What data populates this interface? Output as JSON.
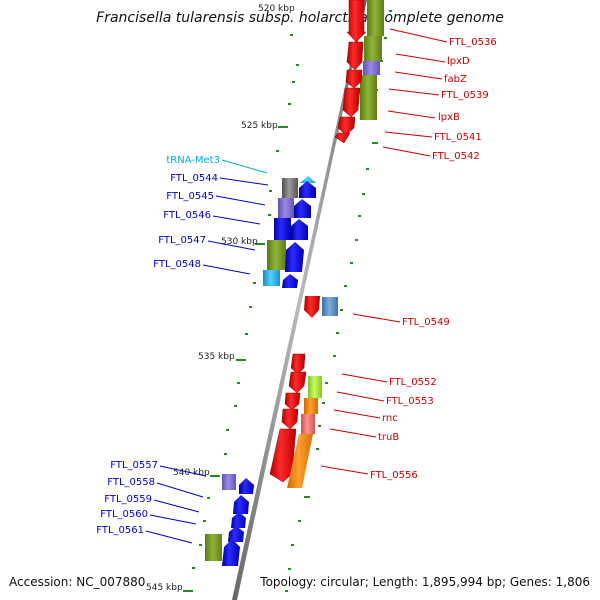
{
  "title": "Francisella tularensis subsp. holarctica, complete genome",
  "footer": {
    "accession_label": "Accession:",
    "accession": "NC_007880",
    "topology_label": "Topology:",
    "topology": "circular;",
    "length_label": "Length:",
    "length": "1,895,994 bp;",
    "genes_label": "Genes:",
    "genes": "1,806"
  },
  "colors": {
    "forward_strand_genes": "#ff0000",
    "reverse_strand_genes": "#0000ee",
    "trna": "#33ccff",
    "backbone": "#888888",
    "ticks": "#228b22"
  },
  "scale_labels": [
    "520 kbp",
    "525 kbp",
    "530 kbp",
    "535 kbp",
    "540 kbp",
    "545 kbp"
  ],
  "genes_right": [
    "FTL_0536",
    "lpxD",
    "fabZ",
    "FTL_0539",
    "lpxB",
    "FTL_0541",
    "FTL_0542",
    "FTL_0549",
    "FTL_0552",
    "FTL_0553",
    "rnc",
    "truB",
    "FTL_0556"
  ],
  "genes_left": [
    "tRNA-Met3",
    "FTL_0544",
    "FTL_0545",
    "FTL_0546",
    "FTL_0547",
    "FTL_0548",
    "FTL_0557",
    "FTL_0558",
    "FTL_0559",
    "FTL_0560",
    "FTL_0561"
  ]
}
